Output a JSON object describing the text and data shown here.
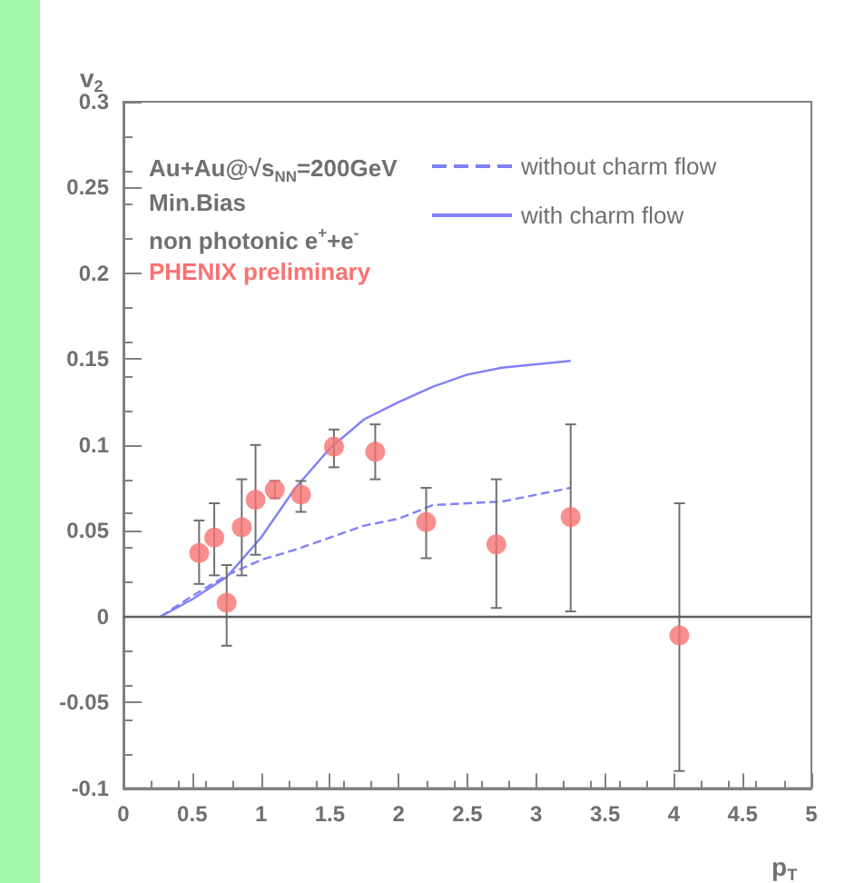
{
  "chart_data": {
    "type": "scatter",
    "xlabel": "p$_{T}$",
    "ylabel": "v$_{2}$",
    "xlim": [
      0,
      5
    ],
    "xticks": [
      0,
      0.5,
      1,
      1.5,
      2,
      2.5,
      3,
      3.5,
      4,
      4.5,
      5
    ],
    "ylim": [
      -0.1,
      0.3
    ],
    "yticks": [
      -0.1,
      -0.05,
      0,
      0.05,
      0.1,
      0.15,
      0.2,
      0.25,
      0.3
    ],
    "grid": false,
    "legend": "top right",
    "marker": "circle",
    "ref_lines": [
      {
        "axis": "y",
        "value": 0,
        "color": "#606060"
      }
    ],
    "annotations": [
      "Au+Au@√s$_{NN}$=200GeV",
      "Min.Bias",
      "non photonic e$^{+}$+e$^{-}$",
      "PHENIX preliminary"
    ],
    "series": [
      {
        "type": "scatter",
        "color": "#f87272",
        "x": [
          0.55,
          0.66,
          0.75,
          0.86,
          0.96,
          1.1,
          1.29,
          1.53,
          1.83,
          2.2,
          2.71,
          3.25,
          4.04
        ],
        "values": [
          0.037,
          0.046,
          0.008,
          0.052,
          0.068,
          0.074,
          0.071,
          0.099,
          0.096,
          0.055,
          0.042,
          0.058,
          -0.011
        ],
        "errors": [
          [
            0.019,
            0.056
          ],
          [
            0.024,
            0.066
          ],
          [
            -0.017,
            0.03
          ],
          [
            0.024,
            0.08
          ],
          [
            0.036,
            0.1
          ],
          [
            0.069,
            0.079
          ],
          [
            0.061,
            0.079
          ],
          [
            0.087,
            0.109
          ],
          [
            0.08,
            0.112
          ],
          [
            0.034,
            0.075
          ],
          [
            0.005,
            0.08
          ],
          [
            0.003,
            0.112
          ],
          [
            -0.09,
            0.066
          ]
        ]
      },
      {
        "type": "line",
        "name": "without charm flow",
        "color": "#8080f8",
        "line_style": "dashed",
        "marker": "none",
        "x": [
          0.27,
          0.5,
          0.75,
          1,
          1.25,
          1.5,
          1.75,
          2,
          2.25,
          2.5,
          2.75,
          3,
          3.25
        ],
        "values": [
          0,
          0.012,
          0.024,
          0.033,
          0.039,
          0.046,
          0.053,
          0.057,
          0.065,
          0.066,
          0.067,
          0.071,
          0.075
        ]
      },
      {
        "type": "line",
        "name": "with charm flow",
        "color": "#8080f8",
        "line_style": "solid",
        "marker": "none",
        "x": [
          0.27,
          0.5,
          0.75,
          1,
          1.25,
          1.5,
          1.75,
          2,
          2.25,
          2.5,
          2.75,
          3,
          3.25
        ],
        "values": [
          0,
          0.01,
          0.023,
          0.046,
          0.075,
          0.098,
          0.115,
          0.125,
          0.134,
          0.141,
          0.145,
          0.147,
          0.149
        ]
      }
    ]
  }
}
